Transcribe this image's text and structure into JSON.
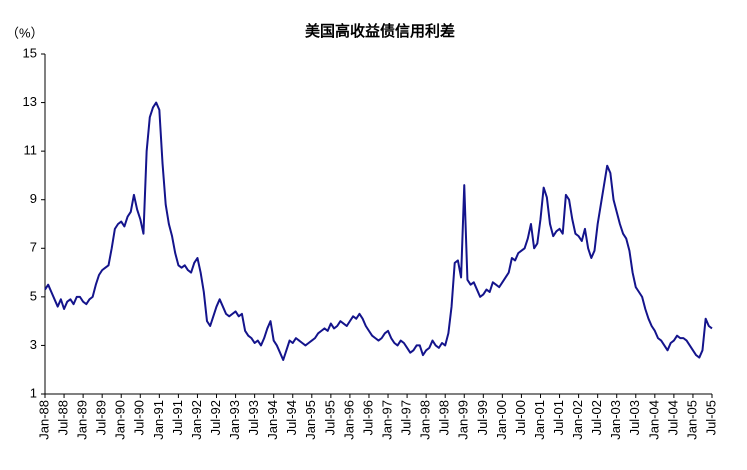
{
  "chart_data": {
    "type": "line",
    "title": "美国高收益债信用利差",
    "y_label": "（%）",
    "categories": [
      "Jan-88",
      null,
      null,
      null,
      null,
      null,
      "Jul-88",
      null,
      null,
      null,
      null,
      null,
      "Jan-89",
      null,
      null,
      null,
      null,
      null,
      "Jul-89",
      null,
      null,
      null,
      null,
      null,
      "Jan-90",
      null,
      null,
      null,
      null,
      null,
      "Jul-90",
      null,
      null,
      null,
      null,
      null,
      "Jan-91",
      null,
      null,
      null,
      null,
      null,
      "Jul-91",
      null,
      null,
      null,
      null,
      null,
      "Jan-92",
      null,
      null,
      null,
      null,
      null,
      "Jul-92",
      null,
      null,
      null,
      null,
      null,
      "Jan-93",
      null,
      null,
      null,
      null,
      null,
      "Jul-93",
      null,
      null,
      null,
      null,
      null,
      "Jan-94",
      null,
      null,
      null,
      null,
      null,
      "Jul-94",
      null,
      null,
      null,
      null,
      null,
      "Jan-95",
      null,
      null,
      null,
      null,
      null,
      "Jul-95",
      null,
      null,
      null,
      null,
      null,
      "Jan-96",
      null,
      null,
      null,
      null,
      null,
      "Jul-96",
      null,
      null,
      null,
      null,
      null,
      "Jan-97",
      null,
      null,
      null,
      null,
      null,
      "Jul-97",
      null,
      null,
      null,
      null,
      null,
      "Jan-98",
      null,
      null,
      null,
      null,
      null,
      "Jul-98",
      null,
      null,
      null,
      null,
      null,
      "Jan-99",
      null,
      null,
      null,
      null,
      null,
      "Jul-99",
      null,
      null,
      null,
      null,
      null,
      "Jan-00",
      null,
      null,
      null,
      null,
      null,
      "Jul-00",
      null,
      null,
      null,
      null,
      null,
      "Jan-01",
      null,
      null,
      null,
      null,
      null,
      "Jul-01",
      null,
      null,
      null,
      null,
      null,
      "Jan-02",
      null,
      null,
      null,
      null,
      null,
      "Jul-02",
      null,
      null,
      null,
      null,
      null,
      "Jan-03",
      null,
      null,
      null,
      null,
      null,
      "Jul-03",
      null,
      null,
      null,
      null,
      null,
      "Jan-04",
      null,
      null,
      null,
      null,
      null,
      "Jul-04",
      null,
      null,
      null,
      null,
      null,
      "Jan-05",
      null,
      null,
      null,
      null,
      null,
      "Jul-05"
    ],
    "series": [
      {
        "color": "#14148c",
        "values": [
          5.3,
          5.5,
          5.2,
          4.9,
          4.6,
          4.9,
          4.5,
          4.8,
          4.9,
          4.7,
          5.0,
          5.0,
          4.8,
          4.7,
          4.9,
          5.0,
          5.5,
          5.9,
          6.1,
          6.2,
          6.3,
          7.0,
          7.8,
          8.0,
          8.1,
          7.9,
          8.3,
          8.5,
          9.2,
          8.6,
          8.2,
          7.6,
          11.0,
          12.4,
          12.8,
          13.0,
          12.7,
          10.5,
          8.8,
          8.0,
          7.5,
          6.8,
          6.3,
          6.2,
          6.3,
          6.1,
          6.0,
          6.4,
          6.6,
          6.0,
          5.2,
          4.0,
          3.8,
          4.2,
          4.6,
          4.9,
          4.6,
          4.3,
          4.2,
          4.3,
          4.4,
          4.2,
          4.3,
          3.6,
          3.4,
          3.3,
          3.1,
          3.2,
          3.0,
          3.3,
          3.7,
          4.0,
          3.2,
          3.0,
          2.7,
          2.4,
          2.8,
          3.2,
          3.1,
          3.3,
          3.2,
          3.1,
          3.0,
          3.1,
          3.2,
          3.3,
          3.5,
          3.6,
          3.7,
          3.6,
          3.9,
          3.7,
          3.8,
          4.0,
          3.9,
          3.8,
          4.0,
          4.2,
          4.1,
          4.3,
          4.1,
          3.8,
          3.6,
          3.4,
          3.3,
          3.2,
          3.3,
          3.5,
          3.6,
          3.3,
          3.1,
          3.0,
          3.2,
          3.1,
          2.9,
          2.7,
          2.8,
          3.0,
          3.0,
          2.6,
          2.8,
          2.9,
          3.2,
          3.0,
          2.9,
          3.1,
          3.0,
          3.5,
          4.6,
          6.4,
          6.5,
          5.8,
          9.6,
          5.7,
          5.5,
          5.6,
          5.3,
          5.0,
          5.1,
          5.3,
          5.2,
          5.6,
          5.5,
          5.4,
          5.6,
          5.8,
          6.0,
          6.6,
          6.5,
          6.8,
          6.9,
          7.0,
          7.4,
          8.0,
          7.0,
          7.2,
          8.2,
          9.5,
          9.1,
          8.0,
          7.5,
          7.7,
          7.8,
          7.6,
          9.2,
          9.0,
          8.2,
          7.6,
          7.5,
          7.3,
          7.8,
          7.0,
          6.6,
          6.9,
          8.0,
          8.8,
          9.6,
          10.4,
          10.1,
          9.0,
          8.5,
          8.0,
          7.6,
          7.4,
          6.9,
          6.0,
          5.4,
          5.2,
          5.0,
          4.5,
          4.1,
          3.8,
          3.6,
          3.3,
          3.2,
          3.0,
          2.8,
          3.1,
          3.2,
          3.4,
          3.3,
          3.3,
          3.2,
          3.0,
          2.8,
          2.6,
          2.5,
          2.8,
          4.1,
          3.8,
          3.7
        ]
      }
    ],
    "ylim": [
      1,
      15
    ],
    "yticks": [
      1,
      3,
      5,
      7,
      9,
      11,
      13,
      15
    ],
    "grid": false
  }
}
